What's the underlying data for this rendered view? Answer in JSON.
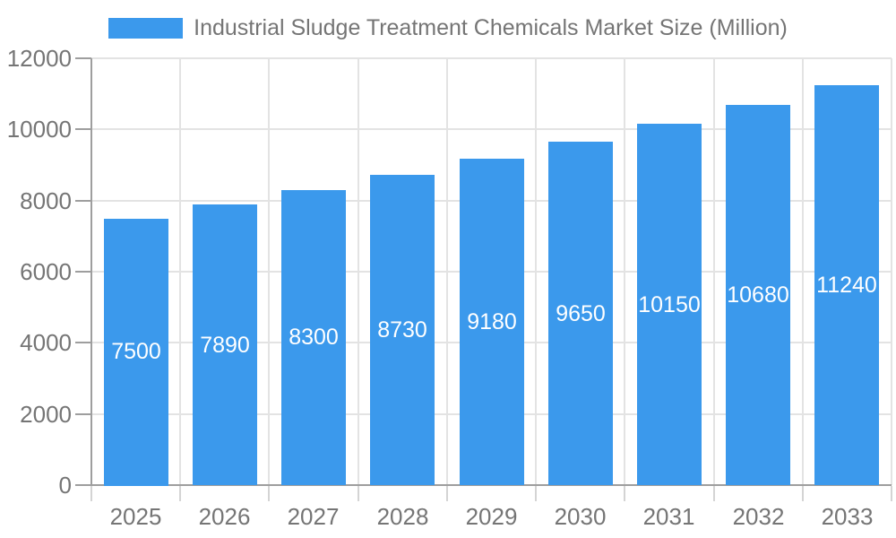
{
  "chart_data": {
    "type": "bar",
    "title": "Industrial Sludge Treatment Chemicals Market Size (Million)",
    "legend_position": "top",
    "categories": [
      "2025",
      "2026",
      "2027",
      "2028",
      "2029",
      "2030",
      "2031",
      "2032",
      "2033"
    ],
    "values": [
      7500,
      7890,
      8300,
      8730,
      9180,
      9650,
      10150,
      10680,
      11240
    ],
    "series": [
      {
        "name": "Industrial Sludge Treatment Chemicals Market Size (Million)",
        "values": [
          7500,
          7890,
          8300,
          8730,
          9180,
          9650,
          10150,
          10680,
          11240
        ]
      }
    ],
    "xlabel": "",
    "ylabel": "",
    "ylim": [
      0,
      12000
    ],
    "yticks": [
      0,
      2000,
      4000,
      6000,
      8000,
      10000,
      12000
    ],
    "grid": true,
    "value_label_position": "inside-center",
    "colors": {
      "bar": "#3B99EC",
      "bar_label": "#FFFFFF",
      "text": "#757575",
      "axis_line": "#9E9E9E",
      "y_tick": "#9E9E9E",
      "x_tick": "#D4D4D4",
      "grid_line": "#E3E3E3",
      "background": "#FFFFFF"
    }
  }
}
